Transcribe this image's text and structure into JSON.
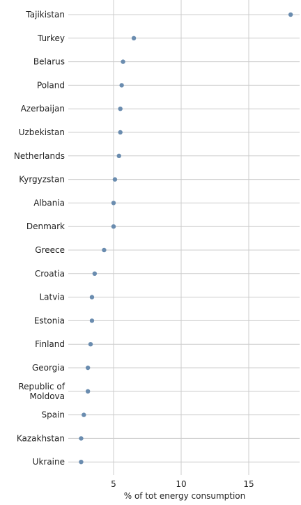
{
  "chart_data": {
    "type": "scatter",
    "orientation": "horizontal",
    "categories": [
      "Tajikistan",
      "Turkey",
      "Belarus",
      "Poland",
      "Azerbaijan",
      "Uzbekistan",
      "Netherlands",
      "Kyrgyzstan",
      "Albania",
      "Denmark",
      "Greece",
      "Croatia",
      "Latvia",
      "Estonia",
      "Finland",
      "Georgia",
      "Republic of Moldova",
      "Spain",
      "Kazakhstan",
      "Ukraine"
    ],
    "values": [
      18.1,
      6.5,
      5.7,
      5.6,
      5.5,
      5.5,
      5.4,
      5.1,
      5.0,
      5.0,
      4.3,
      3.6,
      3.4,
      3.4,
      3.3,
      3.1,
      3.1,
      2.8,
      2.6,
      2.6
    ],
    "xlabel": "% of tot energy consumption",
    "xticks": [
      5,
      10,
      15
    ],
    "xlim": [
      2.6,
      18.1
    ],
    "grid": true,
    "color": "#6a8caf"
  }
}
